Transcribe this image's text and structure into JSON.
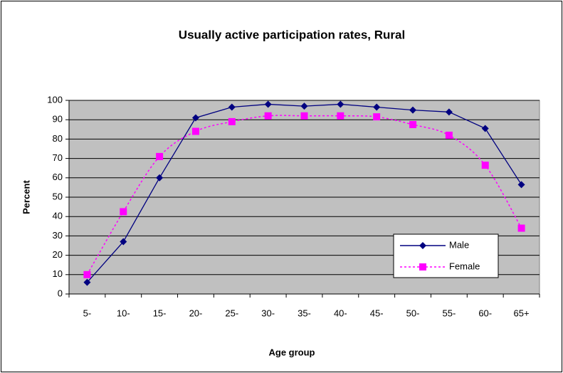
{
  "chart_data": {
    "type": "line",
    "title": "Usually active participation rates, Rural",
    "x_label": "Age group",
    "y_label": "Percent",
    "categories": [
      "5-",
      "10-",
      "15-",
      "20-",
      "25-",
      "30-",
      "35-",
      "40-",
      "45-",
      "50-",
      "55-",
      "60-",
      "65+"
    ],
    "series": [
      {
        "name": "Male",
        "color": "#000080",
        "marker": "diamond",
        "smooth": false,
        "values": [
          6,
          27,
          60,
          91,
          96.5,
          98,
          97,
          98,
          96.5,
          95,
          94,
          85.5,
          56.5
        ]
      },
      {
        "name": "Female",
        "color": "#ff00ff",
        "marker": "square",
        "smooth": true,
        "values": [
          10,
          42.5,
          71,
          84,
          89,
          92,
          92,
          92,
          91.5,
          87.5,
          82,
          66.5,
          34
        ]
      }
    ],
    "ylim": [
      0,
      100
    ],
    "yticks": [
      0,
      10,
      20,
      30,
      40,
      50,
      60,
      70,
      80,
      90,
      100
    ],
    "grid": true
  }
}
